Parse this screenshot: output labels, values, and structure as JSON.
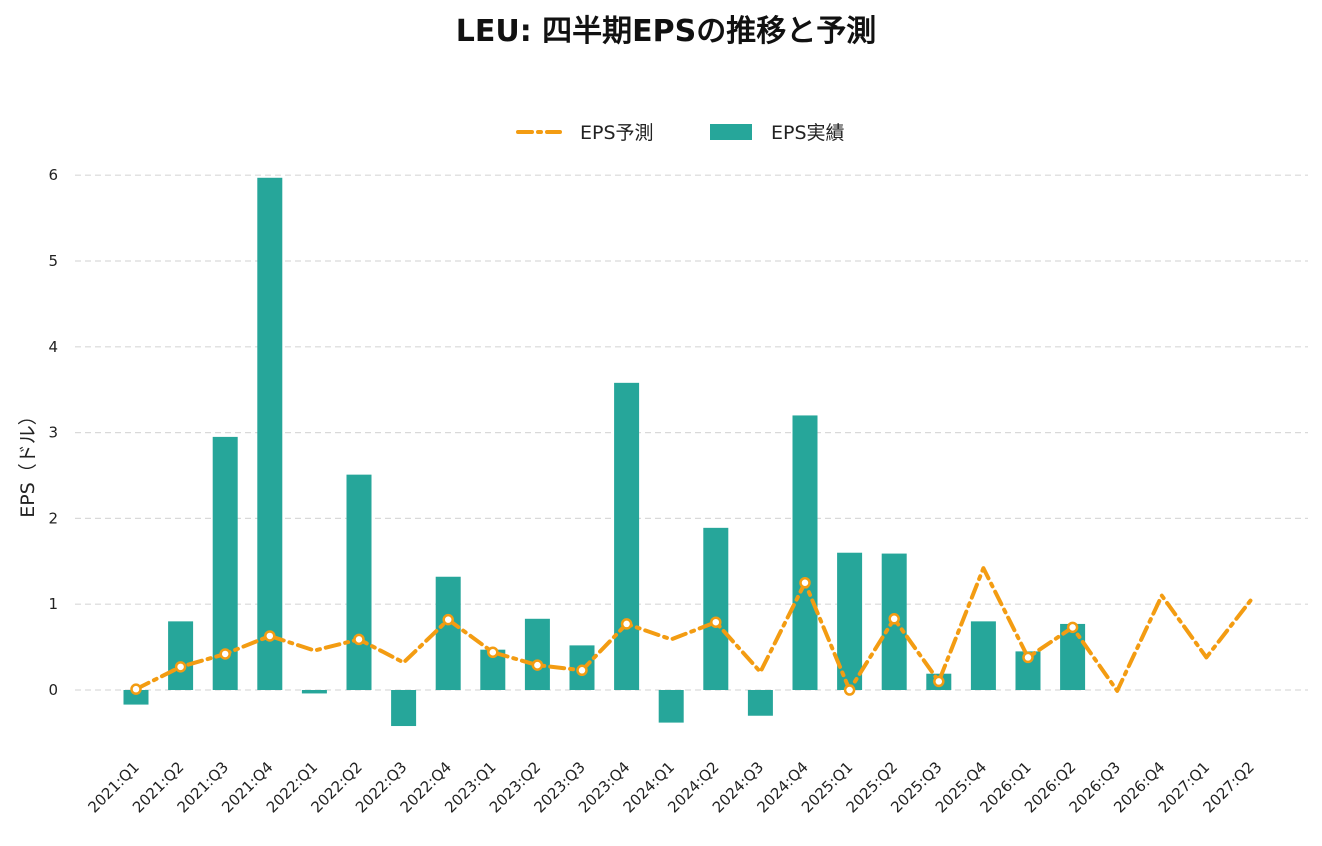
{
  "chart_data": {
    "type": "bar",
    "title": "LEU: 四半期EPSの推移と予測",
    "ylabel": "EPS（ドル）",
    "xlabel": "",
    "ylim": [
      -0.75,
      6.15
    ],
    "yticks": [
      0,
      1,
      2,
      3,
      4,
      5,
      6
    ],
    "grid": true,
    "legend_position": "top-center",
    "categories": [
      "2021:Q1",
      "2021:Q2",
      "2021:Q3",
      "2021:Q4",
      "2022:Q1",
      "2022:Q2",
      "2022:Q3",
      "2022:Q4",
      "2023:Q1",
      "2023:Q2",
      "2023:Q3",
      "2023:Q4",
      "2024:Q1",
      "2024:Q2",
      "2024:Q3",
      "2024:Q4",
      "2025:Q1",
      "2025:Q2",
      "2025:Q3",
      "2025:Q4",
      "2026:Q1",
      "2026:Q2",
      "2026:Q3",
      "2026:Q4",
      "2027:Q1",
      "2027:Q2"
    ],
    "series": [
      {
        "name": "EPS予測",
        "kind": "line",
        "style": "dash-dot",
        "color": "#f39c12",
        "values": [
          0.01,
          0.27,
          0.42,
          0.63,
          0.46,
          0.59,
          0.32,
          0.82,
          0.44,
          0.29,
          0.23,
          0.77,
          0.59,
          0.79,
          0.21,
          1.25,
          0.0,
          0.83,
          0.1,
          1.42,
          0.38,
          0.73,
          -0.01,
          1.1,
          0.38,
          1.05
        ],
        "markers": [
          true,
          true,
          true,
          true,
          false,
          true,
          false,
          true,
          true,
          true,
          true,
          true,
          false,
          true,
          false,
          true,
          true,
          true,
          true,
          false,
          true,
          true,
          false,
          false,
          false,
          false
        ]
      },
      {
        "name": "EPS実績",
        "kind": "bar",
        "color": "#26a69a",
        "values": [
          -0.17,
          0.8,
          2.95,
          5.97,
          -0.04,
          2.51,
          -0.42,
          1.32,
          0.47,
          0.83,
          0.52,
          3.58,
          -0.38,
          1.89,
          -0.3,
          3.2,
          1.6,
          1.59,
          0.19,
          0.8,
          0.45,
          0.77,
          null,
          null,
          null,
          null
        ]
      }
    ]
  }
}
